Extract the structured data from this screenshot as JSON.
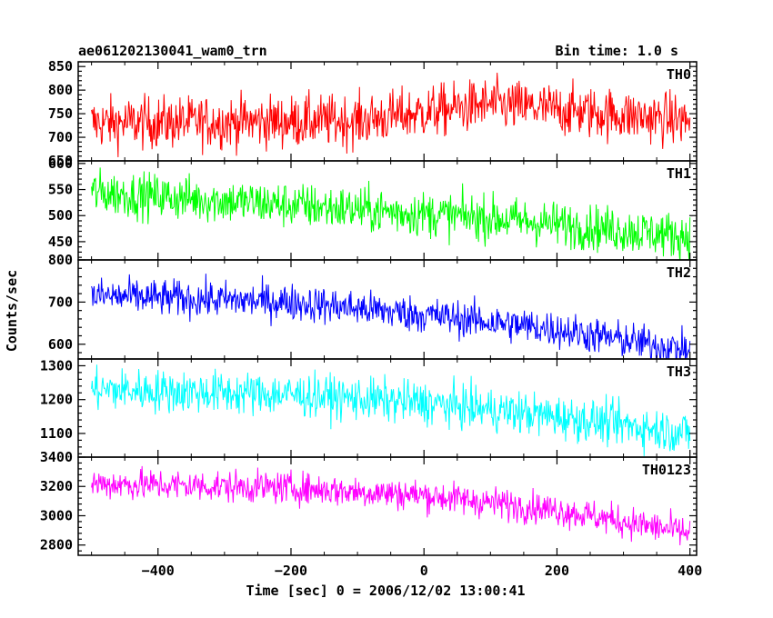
{
  "chart_data": {
    "type": "line",
    "title": "ae061202130041_wam0_trn",
    "subtitle": "Bin time: 1.0 s",
    "xlabel": "Time [sec] 0 = 2006/12/02 13:00:41",
    "ylabel": "Counts/sec",
    "xlim": [
      -520,
      410
    ],
    "x_ticks": [
      -400,
      -200,
      0,
      200,
      400
    ],
    "x_tick_labels": [
      "−400",
      "−200",
      "0",
      "200",
      "400"
    ],
    "x_data_range": [
      -500,
      400
    ],
    "bin_time": 1.0,
    "grid": false,
    "series": [
      {
        "name": "TH0",
        "color": "#ff0000",
        "ylim": [
          650,
          860
        ],
        "y_ticks": [
          650,
          700,
          750,
          800,
          850
        ],
        "y_tick_labels": [
          "650",
          "700",
          "750",
          "800",
          "850"
        ],
        "trend": [
          [
            -500,
            730
          ],
          [
            -100,
            735
          ],
          [
            100,
            770
          ],
          [
            400,
            735
          ]
        ],
        "scatter": 28
      },
      {
        "name": "TH1",
        "color": "#00ff00",
        "ylim": [
          415,
          605
        ],
        "y_ticks": [
          450,
          500,
          550,
          600
        ],
        "y_tick_labels": [
          "450",
          "500",
          "550",
          "600"
        ],
        "trend": [
          [
            -500,
            545
          ],
          [
            -200,
            520
          ],
          [
            100,
            495
          ],
          [
            400,
            460
          ]
        ],
        "scatter": 22
      },
      {
        "name": "TH2",
        "color": "#0000ff",
        "ylim": [
          565,
          800
        ],
        "y_ticks": [
          600,
          700,
          800
        ],
        "y_tick_labels": [
          "600",
          "700",
          "800"
        ],
        "trend": [
          [
            -500,
            715
          ],
          [
            -200,
            700
          ],
          [
            0,
            670
          ],
          [
            200,
            635
          ],
          [
            400,
            585
          ]
        ],
        "scatter": 22
      },
      {
        "name": "TH3",
        "color": "#00ffff",
        "ylim": [
          1030,
          1320
        ],
        "y_ticks": [
          1100,
          1200,
          1300
        ],
        "y_tick_labels": [
          "1100",
          "1200",
          "1300"
        ],
        "trend": [
          [
            -500,
            1230
          ],
          [
            -200,
            1215
          ],
          [
            0,
            1190
          ],
          [
            200,
            1150
          ],
          [
            400,
            1100
          ]
        ],
        "scatter": 32
      },
      {
        "name": "TH0123",
        "color": "#ff00ff",
        "ylim": [
          2730,
          3400
        ],
        "y_ticks": [
          2800,
          3000,
          3200,
          3400
        ],
        "y_tick_labels": [
          "2800",
          "3000",
          "3200",
          "3400"
        ],
        "trend": [
          [
            -500,
            3220
          ],
          [
            -200,
            3190
          ],
          [
            0,
            3140
          ],
          [
            200,
            3040
          ],
          [
            400,
            2880
          ]
        ],
        "scatter": 55
      }
    ]
  }
}
